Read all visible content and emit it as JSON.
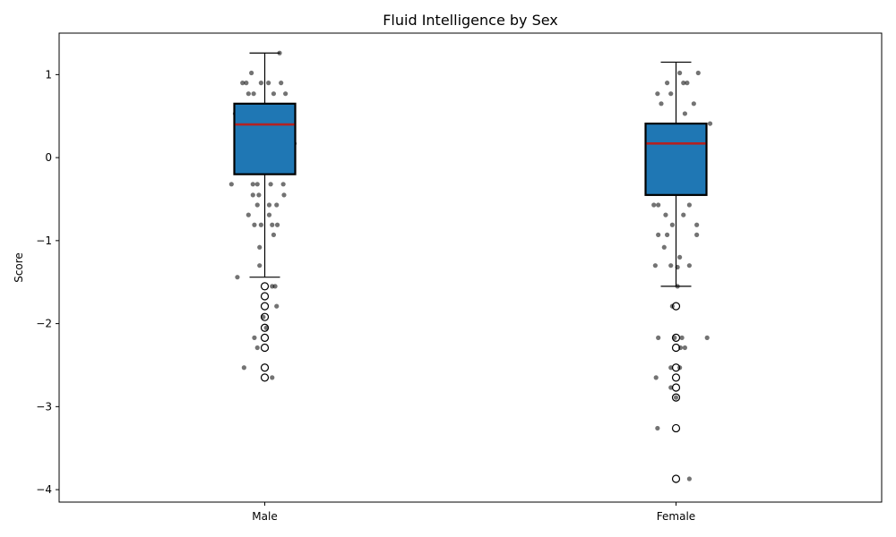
{
  "chart_data": {
    "type": "box",
    "title": "Fluid Intelligence by Sex",
    "xlabel": "",
    "ylabel": "Score",
    "categories": [
      "Male",
      "Female"
    ],
    "ylim": [
      -4.15,
      1.5
    ],
    "yticks": [
      1,
      0,
      -1,
      -2,
      -3,
      -4
    ],
    "ytick_labels": [
      "1",
      "0",
      "−1",
      "−2",
      "−3",
      "−4"
    ],
    "grid": false,
    "colors": {
      "box_fill": "#1f77b4",
      "box_edge": "#000000",
      "median": "#b22222",
      "points": "#000000"
    },
    "boxes": [
      {
        "category": "Male",
        "whisker_low": -1.44,
        "q1": -0.2,
        "median": 0.4,
        "q3": 0.65,
        "whisker_high": 1.26,
        "outliers": [
          -1.55,
          -1.67,
          -1.79,
          -1.92,
          -2.05,
          -2.17,
          -2.29,
          -2.53,
          -2.65
        ]
      },
      {
        "category": "Female",
        "whisker_low": -1.55,
        "q1": -0.45,
        "median": 0.17,
        "q3": 0.41,
        "whisker_high": 1.15,
        "outliers": [
          -1.79,
          -2.17,
          -2.29,
          -2.53,
          -2.65,
          -2.77,
          -2.89,
          -3.26,
          -3.87
        ]
      }
    ],
    "jitter_points": [
      {
        "category": "Male",
        "dx": -0.3,
        "y": 0.9
      },
      {
        "category": "Male",
        "dx": -0.25,
        "y": 0.9
      },
      {
        "category": "Male",
        "dx": -0.18,
        "y": 1.02
      },
      {
        "category": "Male",
        "dx": -0.22,
        "y": 0.77
      },
      {
        "category": "Male",
        "dx": -0.15,
        "y": 0.77
      },
      {
        "category": "Male",
        "dx": -0.05,
        "y": 0.9
      },
      {
        "category": "Male",
        "dx": 0.05,
        "y": 0.9
      },
      {
        "category": "Male",
        "dx": 0.12,
        "y": 0.77
      },
      {
        "category": "Male",
        "dx": 0.22,
        "y": 0.9
      },
      {
        "category": "Male",
        "dx": 0.28,
        "y": 0.77
      },
      {
        "category": "Male",
        "dx": 0.2,
        "y": 1.26
      },
      {
        "category": "Male",
        "dx": -0.4,
        "y": 0.53
      },
      {
        "category": "Male",
        "dx": 0.35,
        "y": 0.53
      },
      {
        "category": "Male",
        "dx": 0.4,
        "y": 0.17
      },
      {
        "category": "Male",
        "dx": 0.3,
        "y": 0.17
      },
      {
        "category": "Male",
        "dx": 0.32,
        "y": 0.05
      },
      {
        "category": "Male",
        "dx": -0.3,
        "y": 0.05
      },
      {
        "category": "Male",
        "dx": -0.38,
        "y": -0.08
      },
      {
        "category": "Male",
        "dx": -0.45,
        "y": -0.32
      },
      {
        "category": "Male",
        "dx": -0.16,
        "y": -0.32
      },
      {
        "category": "Male",
        "dx": -0.1,
        "y": -0.32
      },
      {
        "category": "Male",
        "dx": 0.08,
        "y": -0.32
      },
      {
        "category": "Male",
        "dx": 0.25,
        "y": -0.32
      },
      {
        "category": "Male",
        "dx": -0.16,
        "y": -0.45
      },
      {
        "category": "Male",
        "dx": -0.08,
        "y": -0.45
      },
      {
        "category": "Male",
        "dx": 0.26,
        "y": -0.45
      },
      {
        "category": "Male",
        "dx": -0.1,
        "y": -0.57
      },
      {
        "category": "Male",
        "dx": 0.06,
        "y": -0.57
      },
      {
        "category": "Male",
        "dx": 0.16,
        "y": -0.57
      },
      {
        "category": "Male",
        "dx": -0.22,
        "y": -0.69
      },
      {
        "category": "Male",
        "dx": 0.06,
        "y": -0.69
      },
      {
        "category": "Male",
        "dx": -0.14,
        "y": -0.81
      },
      {
        "category": "Male",
        "dx": -0.05,
        "y": -0.81
      },
      {
        "category": "Male",
        "dx": 0.1,
        "y": -0.81
      },
      {
        "category": "Male",
        "dx": 0.17,
        "y": -0.81
      },
      {
        "category": "Male",
        "dx": 0.12,
        "y": -0.93
      },
      {
        "category": "Male",
        "dx": -0.07,
        "y": -1.08
      },
      {
        "category": "Male",
        "dx": -0.07,
        "y": -1.3
      },
      {
        "category": "Male",
        "dx": -0.37,
        "y": -1.44
      },
      {
        "category": "Male",
        "dx": 0.1,
        "y": -1.55
      },
      {
        "category": "Male",
        "dx": 0.14,
        "y": -1.55
      },
      {
        "category": "Male",
        "dx": 0.16,
        "y": -1.79
      },
      {
        "category": "Male",
        "dx": -0.02,
        "y": -1.92
      },
      {
        "category": "Male",
        "dx": 0.02,
        "y": -2.05
      },
      {
        "category": "Male",
        "dx": -0.14,
        "y": -2.17
      },
      {
        "category": "Male",
        "dx": -0.1,
        "y": -2.29
      },
      {
        "category": "Male",
        "dx": -0.28,
        "y": -2.53
      },
      {
        "category": "Male",
        "dx": 0.1,
        "y": -2.65
      },
      {
        "category": "Female",
        "dx": -0.25,
        "y": 0.77
      },
      {
        "category": "Female",
        "dx": -0.2,
        "y": 0.65
      },
      {
        "category": "Female",
        "dx": -0.12,
        "y": 0.9
      },
      {
        "category": "Female",
        "dx": -0.07,
        "y": 0.77
      },
      {
        "category": "Female",
        "dx": 0.05,
        "y": 1.02
      },
      {
        "category": "Female",
        "dx": 0.1,
        "y": 0.9
      },
      {
        "category": "Female",
        "dx": 0.15,
        "y": 0.9
      },
      {
        "category": "Female",
        "dx": 0.24,
        "y": 0.65
      },
      {
        "category": "Female",
        "dx": 0.3,
        "y": 1.02
      },
      {
        "category": "Female",
        "dx": 0.12,
        "y": 0.53
      },
      {
        "category": "Female",
        "dx": 0.38,
        "y": 0.29
      },
      {
        "category": "Female",
        "dx": 0.46,
        "y": 0.41
      },
      {
        "category": "Female",
        "dx": -0.38,
        "y": -0.2
      },
      {
        "category": "Female",
        "dx": 0.34,
        "y": -0.32
      },
      {
        "category": "Female",
        "dx": -0.3,
        "y": -0.57
      },
      {
        "category": "Female",
        "dx": -0.24,
        "y": -0.57
      },
      {
        "category": "Female",
        "dx": 0.18,
        "y": -0.57
      },
      {
        "category": "Female",
        "dx": -0.14,
        "y": -0.69
      },
      {
        "category": "Female",
        "dx": 0.1,
        "y": -0.69
      },
      {
        "category": "Female",
        "dx": -0.05,
        "y": -0.81
      },
      {
        "category": "Female",
        "dx": 0.28,
        "y": -0.81
      },
      {
        "category": "Female",
        "dx": -0.24,
        "y": -0.93
      },
      {
        "category": "Female",
        "dx": -0.12,
        "y": -0.93
      },
      {
        "category": "Female",
        "dx": 0.28,
        "y": -0.93
      },
      {
        "category": "Female",
        "dx": -0.16,
        "y": -1.08
      },
      {
        "category": "Female",
        "dx": 0.05,
        "y": -1.2
      },
      {
        "category": "Female",
        "dx": -0.28,
        "y": -1.3
      },
      {
        "category": "Female",
        "dx": -0.07,
        "y": -1.3
      },
      {
        "category": "Female",
        "dx": 0.02,
        "y": -1.32
      },
      {
        "category": "Female",
        "dx": 0.18,
        "y": -1.3
      },
      {
        "category": "Female",
        "dx": 0.02,
        "y": -1.55
      },
      {
        "category": "Female",
        "dx": -0.05,
        "y": -1.79
      },
      {
        "category": "Female",
        "dx": -0.24,
        "y": -2.17
      },
      {
        "category": "Female",
        "dx": -0.02,
        "y": -2.17
      },
      {
        "category": "Female",
        "dx": 0.08,
        "y": -2.17
      },
      {
        "category": "Female",
        "dx": 0.42,
        "y": -2.17
      },
      {
        "category": "Female",
        "dx": 0.06,
        "y": -2.29
      },
      {
        "category": "Female",
        "dx": 0.12,
        "y": -2.29
      },
      {
        "category": "Female",
        "dx": -0.07,
        "y": -2.53
      },
      {
        "category": "Female",
        "dx": 0.05,
        "y": -2.53
      },
      {
        "category": "Female",
        "dx": -0.27,
        "y": -2.65
      },
      {
        "category": "Female",
        "dx": -0.07,
        "y": -2.77
      },
      {
        "category": "Female",
        "dx": 0.0,
        "y": -2.89
      },
      {
        "category": "Female",
        "dx": -0.25,
        "y": -3.26
      },
      {
        "category": "Female",
        "dx": 0.18,
        "y": -3.87
      }
    ]
  }
}
